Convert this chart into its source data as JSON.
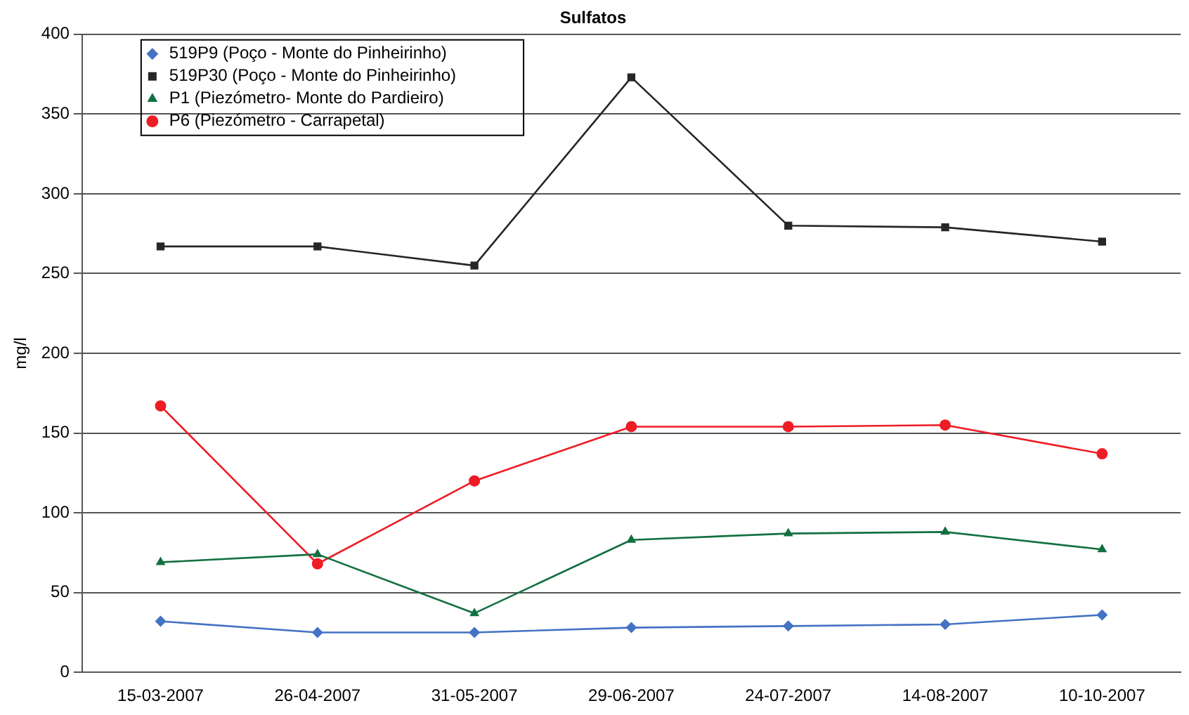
{
  "chart_data": {
    "type": "line",
    "title": "Sulfatos",
    "ylabel": "mg/l",
    "categories": [
      "15-03-2007",
      "26-04-2007",
      "31-05-2007",
      "29-06-2007",
      "24-07-2007",
      "14-08-2007",
      "10-10-2007"
    ],
    "series": [
      {
        "name": "519P9 (Poço - Monte do Pinheirinho)",
        "color": "#4472c4",
        "marker": "diamond",
        "values": [
          32,
          25,
          25,
          28,
          29,
          30,
          36
        ]
      },
      {
        "name": "519P30 (Poço - Monte do Pinheirinho)",
        "color": "#262626",
        "marker": "square",
        "values": [
          267,
          267,
          255,
          373,
          280,
          279,
          270
        ]
      },
      {
        "name": "P1 (Piezómetro- Monte do Pardieiro)",
        "color": "#127040",
        "marker": "triangle",
        "values": [
          69,
          74,
          37,
          83,
          87,
          88,
          77
        ]
      },
      {
        "name": "P6 (Piezómetro - Carrapetal)",
        "color": "#ee1c25",
        "marker": "circle",
        "values": [
          167,
          68,
          120,
          154,
          154,
          155,
          137
        ]
      }
    ],
    "ylim": [
      0,
      400
    ],
    "yticks": [
      0,
      50,
      100,
      150,
      200,
      250,
      300,
      350,
      400
    ],
    "grid": "y",
    "legend": "top left",
    "line_style": "solid"
  }
}
